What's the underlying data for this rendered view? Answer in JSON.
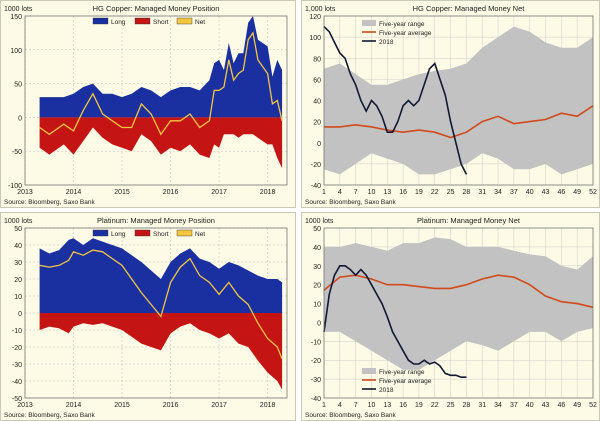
{
  "colors": {
    "long": "#1a2fa0",
    "short": "#c41414",
    "net": "#f3c642",
    "avg": "#d14a1a",
    "range": "#c2c2c2",
    "y2018": "#101833",
    "bg": "#fdfbe6"
  },
  "chart_data": [
    {
      "type": "area",
      "title": "HG Copper: Managed Money Position",
      "unit": "1000 lots",
      "xlim": [
        2013,
        2018.4
      ],
      "ylim": [
        -100,
        150
      ],
      "yticks": [
        -100,
        -50,
        0,
        50,
        100,
        150
      ],
      "ytick_labels": [
        "-100",
        "-50",
        "0",
        "50",
        "100",
        "150"
      ],
      "xticks": [
        2013,
        2014,
        2015,
        2016,
        2017,
        2018
      ],
      "xtick_labels": [
        "2013",
        "2014",
        "2015",
        "2016",
        "2017",
        "2018"
      ],
      "legend": [
        "Long",
        "Short",
        "Net"
      ],
      "source": "Source: Bloomberg, Saxo Bank",
      "series": [
        {
          "name": "Long",
          "x": [
            2013.3,
            2013.5,
            2013.8,
            2014.0,
            2014.2,
            2014.4,
            2014.6,
            2014.8,
            2015.0,
            2015.2,
            2015.4,
            2015.6,
            2015.8,
            2016.0,
            2016.2,
            2016.4,
            2016.6,
            2016.8,
            2016.9,
            2017.0,
            2017.1,
            2017.2,
            2017.3,
            2017.4,
            2017.5,
            2017.6,
            2017.7,
            2017.8,
            2017.9,
            2018.0,
            2018.1,
            2018.2,
            2018.3
          ],
          "values": [
            30,
            30,
            30,
            35,
            45,
            50,
            35,
            35,
            30,
            35,
            45,
            40,
            30,
            40,
            45,
            45,
            40,
            55,
            80,
            85,
            70,
            110,
            80,
            95,
            95,
            140,
            150,
            115,
            110,
            105,
            60,
            85,
            70
          ]
        },
        {
          "name": "Short",
          "x": [
            2013.3,
            2013.5,
            2013.8,
            2014.0,
            2014.2,
            2014.4,
            2014.6,
            2014.8,
            2015.0,
            2015.2,
            2015.4,
            2015.6,
            2015.8,
            2016.0,
            2016.2,
            2016.4,
            2016.6,
            2016.8,
            2016.9,
            2017.0,
            2017.1,
            2017.2,
            2017.3,
            2017.4,
            2017.5,
            2017.6,
            2017.7,
            2017.8,
            2017.9,
            2018.0,
            2018.1,
            2018.2,
            2018.3
          ],
          "values": [
            -45,
            -55,
            -40,
            -55,
            -35,
            -15,
            -30,
            -40,
            -45,
            -50,
            -25,
            -35,
            -55,
            -45,
            -50,
            -40,
            -55,
            -60,
            -40,
            -45,
            -25,
            -25,
            -25,
            -30,
            -25,
            -25,
            -25,
            -30,
            -35,
            -40,
            -40,
            -60,
            -75
          ]
        },
        {
          "name": "Net",
          "x": [
            2013.3,
            2013.5,
            2013.8,
            2014.0,
            2014.2,
            2014.4,
            2014.6,
            2014.8,
            2015.0,
            2015.2,
            2015.4,
            2015.6,
            2015.8,
            2016.0,
            2016.2,
            2016.4,
            2016.6,
            2016.8,
            2016.9,
            2017.0,
            2017.1,
            2017.2,
            2017.3,
            2017.4,
            2017.5,
            2017.6,
            2017.7,
            2017.8,
            2017.9,
            2018.0,
            2018.1,
            2018.2,
            2018.3
          ],
          "values": [
            -15,
            -25,
            -10,
            -20,
            10,
            35,
            5,
            -5,
            -15,
            -15,
            20,
            5,
            -25,
            -5,
            -5,
            5,
            -15,
            -5,
            40,
            40,
            45,
            85,
            55,
            65,
            70,
            115,
            125,
            85,
            75,
            65,
            20,
            25,
            -5
          ]
        }
      ]
    },
    {
      "type": "line",
      "title": "HG Copper: Managed Money Net",
      "unit": "1,000 lots",
      "xlim": [
        1,
        52
      ],
      "ylim": [
        -40,
        120
      ],
      "yticks": [
        -40,
        -20,
        0,
        20,
        40,
        60,
        80,
        100,
        120
      ],
      "ytick_labels": [
        "-40",
        "-20",
        "0",
        "20",
        "40",
        "60",
        "80",
        "100",
        "120"
      ],
      "xticks": [
        1,
        4,
        7,
        10,
        13,
        16,
        19,
        22,
        25,
        28,
        31,
        34,
        37,
        40,
        43,
        46,
        49,
        52
      ],
      "xtick_labels": [
        "1",
        "4",
        "7",
        "10",
        "13",
        "16",
        "19",
        "22",
        "25",
        "28",
        "31",
        "34",
        "37",
        "40",
        "43",
        "46",
        "49",
        "52"
      ],
      "legend": [
        "Five-year range",
        "Five-year average",
        "2018"
      ],
      "source": "Source: Bloomberg, Saxo Bank",
      "range": {
        "x": [
          1,
          4,
          7,
          10,
          13,
          16,
          19,
          22,
          25,
          28,
          31,
          34,
          37,
          40,
          43,
          46,
          49,
          52
        ],
        "upper": [
          70,
          75,
          65,
          55,
          55,
          60,
          65,
          68,
          70,
          75,
          90,
          100,
          110,
          105,
          95,
          90,
          90,
          100
        ],
        "lower": [
          -25,
          -30,
          -20,
          -10,
          -15,
          -20,
          -30,
          -30,
          -25,
          -20,
          -10,
          -15,
          -25,
          -25,
          -20,
          -30,
          -25,
          -20
        ]
      },
      "series": [
        {
          "name": "Five-year average",
          "x": [
            1,
            4,
            7,
            10,
            13,
            16,
            19,
            22,
            25,
            28,
            31,
            34,
            37,
            40,
            43,
            46,
            49,
            52
          ],
          "values": [
            15,
            15,
            17,
            15,
            12,
            10,
            12,
            10,
            5,
            10,
            20,
            25,
            18,
            20,
            22,
            28,
            25,
            35
          ]
        },
        {
          "name": "2018",
          "x": [
            1,
            2,
            3,
            4,
            5,
            6,
            7,
            8,
            9,
            10,
            11,
            12,
            13,
            14,
            15,
            16,
            17,
            18,
            19,
            20,
            21,
            22,
            23,
            24,
            25,
            26,
            27,
            28
          ],
          "values": [
            110,
            105,
            95,
            85,
            80,
            65,
            55,
            40,
            30,
            40,
            35,
            25,
            10,
            10,
            20,
            35,
            40,
            35,
            40,
            55,
            70,
            75,
            60,
            45,
            20,
            0,
            -20,
            -30
          ]
        }
      ]
    },
    {
      "type": "area",
      "title": "Platinum: Managed Money Position",
      "unit": "1000 lots",
      "xlim": [
        2013,
        2018.4
      ],
      "ylim": [
        -50,
        50
      ],
      "yticks": [
        -50,
        -40,
        -30,
        -20,
        -10,
        0,
        10,
        20,
        30,
        40,
        50
      ],
      "ytick_labels": [
        "-50",
        "-40",
        "-30",
        "-20",
        "-10",
        "0",
        "10",
        "20",
        "30",
        "40",
        "50"
      ],
      "xticks": [
        2013,
        2014,
        2015,
        2016,
        2017,
        2018
      ],
      "xtick_labels": [
        "2013",
        "2014",
        "2015",
        "2016",
        "2017",
        "2018"
      ],
      "legend": [
        "Long",
        "Short",
        "Net"
      ],
      "source": "Source: Bloomberg, Saxo Bank",
      "series": [
        {
          "name": "Long",
          "x": [
            2013.3,
            2013.5,
            2013.7,
            2013.9,
            2014.0,
            2014.2,
            2014.4,
            2014.6,
            2014.8,
            2015.0,
            2015.2,
            2015.4,
            2015.6,
            2015.8,
            2016.0,
            2016.2,
            2016.4,
            2016.6,
            2016.8,
            2017.0,
            2017.2,
            2017.4,
            2017.6,
            2017.8,
            2018.0,
            2018.2,
            2018.3
          ],
          "values": [
            38,
            35,
            37,
            43,
            44,
            40,
            44,
            42,
            40,
            38,
            34,
            30,
            25,
            20,
            30,
            35,
            38,
            32,
            30,
            26,
            30,
            28,
            25,
            22,
            20,
            20,
            18
          ]
        },
        {
          "name": "Short",
          "x": [
            2013.3,
            2013.5,
            2013.7,
            2013.9,
            2014.0,
            2014.2,
            2014.4,
            2014.6,
            2014.8,
            2015.0,
            2015.2,
            2015.4,
            2015.6,
            2015.8,
            2016.0,
            2016.2,
            2016.4,
            2016.6,
            2016.8,
            2017.0,
            2017.2,
            2017.4,
            2017.6,
            2017.8,
            2018.0,
            2018.2,
            2018.3
          ],
          "values": [
            -10,
            -8,
            -9,
            -12,
            -8,
            -6,
            -7,
            -6,
            -8,
            -10,
            -14,
            -18,
            -20,
            -22,
            -12,
            -8,
            -6,
            -10,
            -12,
            -15,
            -12,
            -18,
            -20,
            -28,
            -35,
            -40,
            -45
          ]
        },
        {
          "name": "Net",
          "x": [
            2013.3,
            2013.5,
            2013.7,
            2013.9,
            2014.0,
            2014.2,
            2014.4,
            2014.6,
            2014.8,
            2015.0,
            2015.2,
            2015.4,
            2015.6,
            2015.8,
            2016.0,
            2016.2,
            2016.4,
            2016.6,
            2016.8,
            2017.0,
            2017.2,
            2017.4,
            2017.6,
            2017.8,
            2018.0,
            2018.2,
            2018.3
          ],
          "values": [
            28,
            27,
            28,
            31,
            36,
            34,
            37,
            36,
            32,
            28,
            20,
            12,
            5,
            -2,
            18,
            27,
            32,
            22,
            18,
            11,
            18,
            10,
            5,
            -6,
            -15,
            -20,
            -27
          ]
        }
      ]
    },
    {
      "type": "line",
      "title": "Platinum: Managed Money Net",
      "unit": "1000 lots",
      "xlim": [
        1,
        52
      ],
      "ylim": [
        -40,
        50
      ],
      "yticks": [
        -40,
        -30,
        -20,
        -10,
        0,
        10,
        20,
        30,
        40,
        50
      ],
      "ytick_labels": [
        "-40",
        "-30",
        "-20",
        "-10",
        "0",
        "10",
        "20",
        "30",
        "40",
        "50"
      ],
      "xticks": [
        1,
        4,
        7,
        10,
        13,
        16,
        19,
        22,
        25,
        28,
        31,
        34,
        37,
        40,
        43,
        46,
        49,
        52
      ],
      "xtick_labels": [
        "1",
        "4",
        "7",
        "10",
        "13",
        "16",
        "19",
        "22",
        "25",
        "28",
        "31",
        "34",
        "37",
        "40",
        "43",
        "46",
        "49",
        "52"
      ],
      "legend": [
        "Five-year range",
        "Five-year average",
        "2018"
      ],
      "source": "Source: Bloomberg, Saxo Bank",
      "range": {
        "x": [
          1,
          4,
          7,
          10,
          13,
          16,
          19,
          22,
          25,
          28,
          31,
          34,
          37,
          40,
          43,
          46,
          49,
          52
        ],
        "upper": [
          40,
          40,
          42,
          40,
          38,
          42,
          42,
          45,
          44,
          40,
          40,
          40,
          38,
          36,
          35,
          30,
          28,
          35
        ],
        "lower": [
          -5,
          -5,
          -10,
          -15,
          -20,
          -25,
          -25,
          -20,
          -15,
          -10,
          -12,
          -15,
          -10,
          -5,
          -5,
          -10,
          -5,
          -3
        ]
      },
      "series": [
        {
          "name": "Five-year average",
          "x": [
            1,
            4,
            7,
            10,
            13,
            16,
            19,
            22,
            25,
            28,
            31,
            34,
            37,
            40,
            43,
            46,
            49,
            52
          ],
          "values": [
            17,
            24,
            25,
            23,
            20,
            20,
            19,
            18,
            18,
            20,
            23,
            25,
            24,
            20,
            14,
            11,
            10,
            8
          ]
        },
        {
          "name": "2018",
          "x": [
            1,
            2,
            3,
            4,
            5,
            6,
            7,
            8,
            9,
            10,
            11,
            12,
            13,
            14,
            15,
            16,
            17,
            18,
            19,
            20,
            21,
            22,
            23,
            24,
            25,
            26,
            27,
            28
          ],
          "values": [
            -5,
            15,
            25,
            30,
            30,
            28,
            25,
            28,
            25,
            20,
            15,
            10,
            3,
            -5,
            -10,
            -15,
            -20,
            -22,
            -22,
            -20,
            -22,
            -21,
            -23,
            -27,
            -28,
            -28,
            -29,
            -29
          ]
        }
      ]
    }
  ]
}
